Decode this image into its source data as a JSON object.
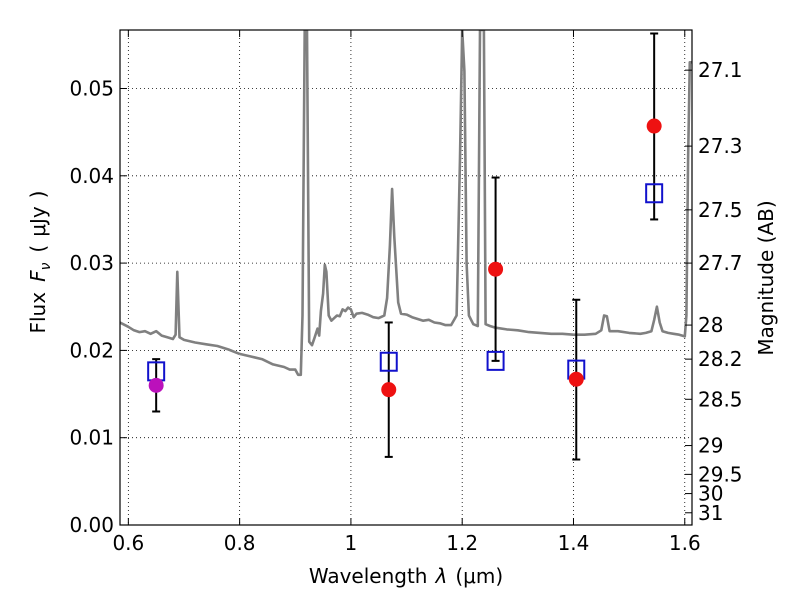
{
  "chart_data": {
    "type": "scatter",
    "xlabel_text": "Wavelength",
    "xlabel_symbol": "λ",
    "xlabel_unit": "(μm)",
    "ylabel_text": "Flux",
    "ylabel_symbol": "F",
    "ylabel_subscript": "ν",
    "ylabel_unit_open": "(",
    "ylabel_unit": "μJy",
    "ylabel_unit_close": ")",
    "y2label": "Magnitude (AB)",
    "xlim": [
      0.585,
      1.613
    ],
    "ylim": [
      0.0,
      0.0567
    ],
    "grid": true,
    "grid_style": "dotted",
    "x_ticks": [
      0.6,
      0.8,
      1.0,
      1.2,
      1.4,
      1.6
    ],
    "x_tick_labels": [
      "0.6",
      "0.8",
      "1",
      "1.2",
      "1.4",
      "1.6"
    ],
    "y_ticks": [
      0.0,
      0.01,
      0.02,
      0.03,
      0.04,
      0.05
    ],
    "y_tick_labels": [
      "0.00",
      "0.01",
      "0.02",
      "0.03",
      "0.04",
      "0.05"
    ],
    "y2_ticks": [
      {
        "label": "27.1",
        "flux": 0.0521
      },
      {
        "label": "27.3",
        "flux": 0.0434
      },
      {
        "label": "27.5",
        "flux": 0.0361
      },
      {
        "label": "27.7",
        "flux": 0.03
      },
      {
        "label": "28",
        "flux": 0.0229
      },
      {
        "label": "28.2",
        "flux": 0.019
      },
      {
        "label": "28.5",
        "flux": 0.0144
      },
      {
        "label": "29",
        "flux": 0.0091
      },
      {
        "label": "29.5",
        "flux": 0.0058
      },
      {
        "label": "30",
        "flux": 0.0036
      },
      {
        "label": "31",
        "flux": 0.0014
      }
    ],
    "colors": {
      "model": "#808080",
      "observed": "#000000",
      "model_points": "#ee1111",
      "synthetic": "#1111cc",
      "special": "#bb11bb"
    },
    "model_spectrum": [
      [
        0.585,
        0.0232
      ],
      [
        0.6,
        0.0227
      ],
      [
        0.61,
        0.0223
      ],
      [
        0.62,
        0.0221
      ],
      [
        0.63,
        0.0222
      ],
      [
        0.64,
        0.0219
      ],
      [
        0.65,
        0.0222
      ],
      [
        0.66,
        0.0217
      ],
      [
        0.67,
        0.0215
      ],
      [
        0.68,
        0.0213
      ],
      [
        0.685,
        0.0218
      ],
      [
        0.688,
        0.029
      ],
      [
        0.692,
        0.0215
      ],
      [
        0.7,
        0.0212
      ],
      [
        0.72,
        0.0209
      ],
      [
        0.74,
        0.0207
      ],
      [
        0.76,
        0.0205
      ],
      [
        0.78,
        0.0201
      ],
      [
        0.8,
        0.0196
      ],
      [
        0.82,
        0.0193
      ],
      [
        0.84,
        0.019
      ],
      [
        0.86,
        0.0184
      ],
      [
        0.88,
        0.0181
      ],
      [
        0.89,
        0.0178
      ],
      [
        0.9,
        0.0178
      ],
      [
        0.905,
        0.0172
      ],
      [
        0.91,
        0.0172
      ],
      [
        0.913,
        0.024
      ],
      [
        0.917,
        0.0567
      ],
      [
        0.921,
        0.0567
      ],
      [
        0.925,
        0.021
      ],
      [
        0.93,
        0.0206
      ],
      [
        0.935,
        0.0215
      ],
      [
        0.94,
        0.0225
      ],
      [
        0.943,
        0.0217
      ],
      [
        0.946,
        0.0245
      ],
      [
        0.95,
        0.0265
      ],
      [
        0.953,
        0.0298
      ],
      [
        0.956,
        0.029
      ],
      [
        0.96,
        0.024
      ],
      [
        0.965,
        0.0234
      ],
      [
        0.97,
        0.0237
      ],
      [
        0.975,
        0.024
      ],
      [
        0.98,
        0.0239
      ],
      [
        0.985,
        0.0247
      ],
      [
        0.99,
        0.0245
      ],
      [
        0.995,
        0.0249
      ],
      [
        1.0,
        0.0247
      ],
      [
        1.005,
        0.0238
      ],
      [
        1.01,
        0.0242
      ],
      [
        1.02,
        0.0243
      ],
      [
        1.03,
        0.0241
      ],
      [
        1.04,
        0.0238
      ],
      [
        1.05,
        0.0237
      ],
      [
        1.06,
        0.024
      ],
      [
        1.065,
        0.026
      ],
      [
        1.07,
        0.032
      ],
      [
        1.074,
        0.0385
      ],
      [
        1.078,
        0.033
      ],
      [
        1.085,
        0.0255
      ],
      [
        1.09,
        0.0242
      ],
      [
        1.1,
        0.0241
      ],
      [
        1.11,
        0.0238
      ],
      [
        1.12,
        0.0236
      ],
      [
        1.13,
        0.0234
      ],
      [
        1.14,
        0.0235
      ],
      [
        1.15,
        0.0232
      ],
      [
        1.16,
        0.0231
      ],
      [
        1.17,
        0.0229
      ],
      [
        1.18,
        0.0229
      ],
      [
        1.19,
        0.024
      ],
      [
        1.196,
        0.042
      ],
      [
        1.2,
        0.0567
      ],
      [
        1.204,
        0.052
      ],
      [
        1.208,
        0.03
      ],
      [
        1.212,
        0.024
      ],
      [
        1.22,
        0.023
      ],
      [
        1.228,
        0.0228
      ],
      [
        1.232,
        0.0567
      ],
      [
        1.236,
        0.0567
      ],
      [
        1.239,
        0.0567
      ],
      [
        1.242,
        0.023
      ],
      [
        1.25,
        0.0228
      ],
      [
        1.26,
        0.0226
      ],
      [
        1.28,
        0.0224
      ],
      [
        1.3,
        0.0223
      ],
      [
        1.32,
        0.0221
      ],
      [
        1.34,
        0.022
      ],
      [
        1.36,
        0.0219
      ],
      [
        1.38,
        0.0219
      ],
      [
        1.4,
        0.0218
      ],
      [
        1.42,
        0.0218
      ],
      [
        1.44,
        0.0219
      ],
      [
        1.45,
        0.0223
      ],
      [
        1.455,
        0.024
      ],
      [
        1.46,
        0.0239
      ],
      [
        1.465,
        0.0222
      ],
      [
        1.48,
        0.0222
      ],
      [
        1.5,
        0.022
      ],
      [
        1.52,
        0.0219
      ],
      [
        1.53,
        0.022
      ],
      [
        1.54,
        0.0222
      ],
      [
        1.545,
        0.0235
      ],
      [
        1.55,
        0.025
      ],
      [
        1.555,
        0.0232
      ],
      [
        1.56,
        0.0222
      ],
      [
        1.57,
        0.022
      ],
      [
        1.58,
        0.0219
      ],
      [
        1.59,
        0.0218
      ],
      [
        1.6,
        0.0216
      ],
      [
        1.603,
        0.024
      ],
      [
        1.606,
        0.042
      ],
      [
        1.609,
        0.053
      ],
      [
        1.613,
        0.053
      ]
    ],
    "observed": [
      {
        "x": 0.65,
        "y": 0.016,
        "yerr_low": 0.013,
        "yerr_high": 0.019
      },
      {
        "x": 1.068,
        "y": 0.0155,
        "yerr_low": 0.0078,
        "yerr_high": 0.0232
      },
      {
        "x": 1.26,
        "y": 0.0293,
        "yerr_low": 0.0188,
        "yerr_high": 0.0398
      },
      {
        "x": 1.405,
        "y": 0.0167,
        "yerr_low": 0.0075,
        "yerr_high": 0.0258
      },
      {
        "x": 1.545,
        "y": 0.0457,
        "yerr_low": 0.035,
        "yerr_high": 0.0563
      }
    ],
    "synthetic": [
      {
        "x": 0.65,
        "y": 0.0176
      },
      {
        "x": 1.068,
        "y": 0.0187
      },
      {
        "x": 1.26,
        "y": 0.0188
      },
      {
        "x": 1.405,
        "y": 0.0178
      },
      {
        "x": 1.545,
        "y": 0.038
      }
    ]
  }
}
